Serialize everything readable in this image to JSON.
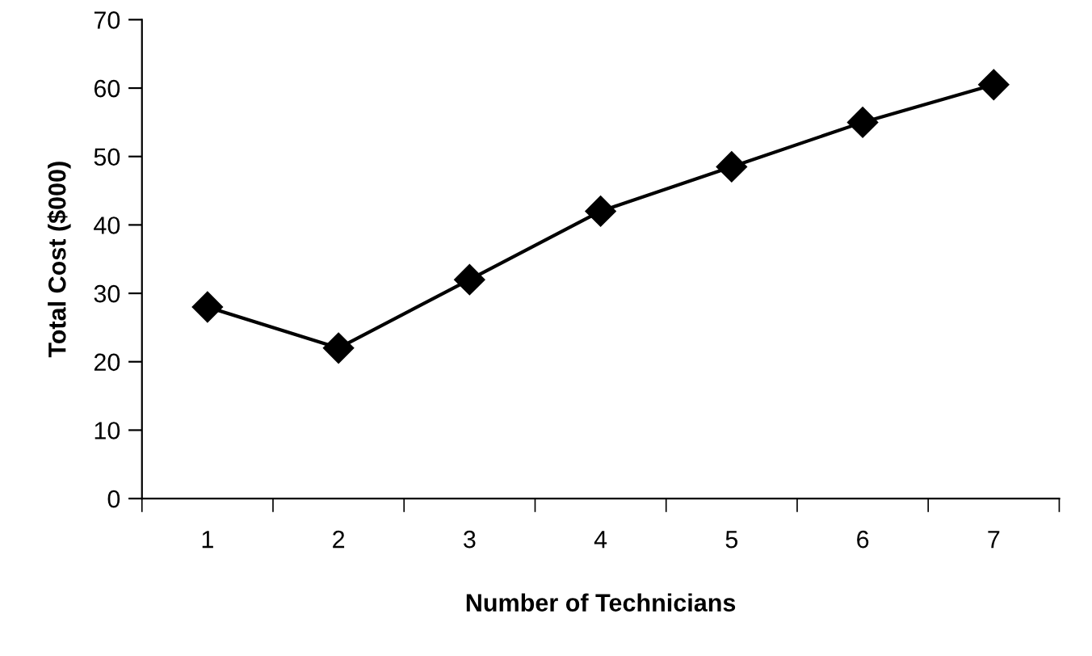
{
  "chart_data": {
    "type": "line",
    "xlabel": "Number of Technicians",
    "ylabel": "Total Cost ($000)",
    "categories": [
      "1",
      "2",
      "3",
      "4",
      "5",
      "6",
      "7"
    ],
    "series": [
      {
        "color": "#000000",
        "values": [
          28,
          22,
          32,
          42,
          48.5,
          55,
          60.5
        ]
      }
    ],
    "ylim": [
      0,
      70
    ],
    "yticks": [
      0,
      10,
      20,
      30,
      40,
      50,
      60,
      70
    ],
    "grid": false,
    "legend": false,
    "marker": "diamond",
    "line_style": "solid"
  }
}
